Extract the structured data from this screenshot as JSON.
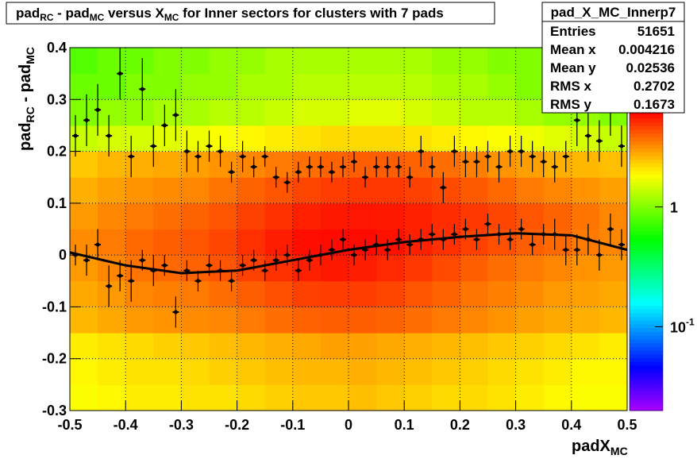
{
  "chart_data": {
    "type": "heatmap",
    "title": [
      "pad",
      "RC",
      " - pad",
      "MC",
      " versus X",
      "MC",
      " for Inner sectors for clusters with 7 pads"
    ],
    "x_label": [
      "padX",
      "MC"
    ],
    "y_label": [
      "pad",
      "RC",
      " - pad",
      "MC"
    ],
    "xlim": [
      -0.5,
      0.5
    ],
    "ylim": [
      -0.3,
      0.4
    ],
    "xticks": [
      -0.5,
      -0.4,
      -0.3,
      -0.2,
      -0.1,
      0,
      0.1,
      0.2,
      0.3,
      0.4,
      0.5
    ],
    "yticks": [
      -0.3,
      -0.2,
      -0.1,
      0,
      0.1,
      0.2,
      0.3,
      0.4
    ],
    "grid": true,
    "zlim": [
      0.02,
      6.3
    ],
    "zlog": true,
    "zticks": [
      1,
      {
        "value": 0.1,
        "label": [
          "10",
          "-1"
        ]
      }
    ],
    "z": [
      [
        1.8,
        1.9,
        2.0,
        2.0,
        2.1,
        2.1,
        2.2,
        2.3,
        2.4,
        2.4,
        2.5,
        2.4,
        2.3,
        2.2,
        2.2,
        2.1,
        2.0,
        1.9,
        1.8,
        1.8
      ],
      [
        1.9,
        2.0,
        2.1,
        2.1,
        2.2,
        2.3,
        2.4,
        2.5,
        2.6,
        2.6,
        2.7,
        2.6,
        2.5,
        2.4,
        2.3,
        2.2,
        2.1,
        2.0,
        1.9,
        1.9
      ],
      [
        2.0,
        2.1,
        2.2,
        2.3,
        2.4,
        2.5,
        2.6,
        2.7,
        2.8,
        2.9,
        2.9,
        2.8,
        2.7,
        2.6,
        2.5,
        2.4,
        2.3,
        2.2,
        2.1,
        2.0
      ],
      [
        2.6,
        2.8,
        3.0,
        3.1,
        3.2,
        3.3,
        3.5,
        3.7,
        3.9,
        4.0,
        4.0,
        3.9,
        3.7,
        3.5,
        3.3,
        3.1,
        2.9,
        2.8,
        2.7,
        2.6
      ],
      [
        2.8,
        3.0,
        3.3,
        3.4,
        3.5,
        3.7,
        4.0,
        4.3,
        4.6,
        4.7,
        4.7,
        4.5,
        4.2,
        3.9,
        3.6,
        3.4,
        3.2,
        3.0,
        2.9,
        2.8
      ],
      [
        3.0,
        3.3,
        3.6,
        3.8,
        3.9,
        4.2,
        4.6,
        5.0,
        5.4,
        5.6,
        5.5,
        5.2,
        4.8,
        4.4,
        4.0,
        3.7,
        3.5,
        3.3,
        3.1,
        3.0
      ],
      [
        3.2,
        3.5,
        3.8,
        4.0,
        4.2,
        4.5,
        5.0,
        5.5,
        5.9,
        6.0,
        6.0,
        5.8,
        5.4,
        5.0,
        4.6,
        4.3,
        4.0,
        3.8,
        3.5,
        3.3
      ],
      [
        3.0,
        3.3,
        3.5,
        3.7,
        3.9,
        4.2,
        4.6,
        5.0,
        5.4,
        5.6,
        5.7,
        5.6,
        5.4,
        5.1,
        4.8,
        4.5,
        4.2,
        3.9,
        3.6,
        3.3
      ],
      [
        2.7,
        2.9,
        3.1,
        3.2,
        3.3,
        3.6,
        3.9,
        4.2,
        4.5,
        4.7,
        4.8,
        4.8,
        4.6,
        4.4,
        4.1,
        3.8,
        3.5,
        3.3,
        3.1,
        2.9
      ],
      [
        2.4,
        2.6,
        2.7,
        2.8,
        2.9,
        3.1,
        3.3,
        3.5,
        3.7,
        3.9,
        4.0,
        4.0,
        3.9,
        3.7,
        3.4,
        3.1,
        2.9,
        2.7,
        2.6,
        2.5
      ],
      [
        1.4,
        1.5,
        1.5,
        1.6,
        1.7,
        1.8,
        1.9,
        2.0,
        2.1,
        2.2,
        2.2,
        2.2,
        2.1,
        2.0,
        1.9,
        1.8,
        1.7,
        1.6,
        1.5,
        1.4
      ],
      [
        1.0,
        1.1,
        1.1,
        1.2,
        1.2,
        1.3,
        1.3,
        1.4,
        1.5,
        1.5,
        1.6,
        1.6,
        1.5,
        1.4,
        1.3,
        1.3,
        1.2,
        1.1,
        1.1,
        1.0
      ],
      [
        0.9,
        0.9,
        1.0,
        1.0,
        1.1,
        1.1,
        1.2,
        1.2,
        1.3,
        1.3,
        1.3,
        1.3,
        1.3,
        1.2,
        1.2,
        1.1,
        1.0,
        1.0,
        0.9,
        0.9
      ],
      [
        0.8,
        0.9,
        0.9,
        1.0,
        1.0,
        1.1,
        1.1,
        1.2,
        1.2,
        1.2,
        1.2,
        1.2,
        1.2,
        1.1,
        1.1,
        1.0,
        1.0,
        0.9,
        0.9,
        0.8
      ]
    ],
    "series": [
      {
        "color": "#000000",
        "x": [
          -0.49,
          -0.47,
          -0.45,
          -0.43,
          -0.41,
          -0.39,
          -0.37,
          -0.35,
          -0.33,
          -0.31,
          -0.29,
          -0.27,
          -0.25,
          -0.23,
          -0.21,
          -0.19,
          -0.17,
          -0.15,
          -0.13,
          -0.11,
          -0.09,
          -0.07,
          -0.05,
          -0.03,
          -0.01,
          0.01,
          0.03,
          0.05,
          0.07,
          0.09,
          0.11,
          0.13,
          0.15,
          0.17,
          0.19,
          0.21,
          0.23,
          0.25,
          0.27,
          0.29,
          0.31,
          0.33,
          0.35,
          0.37,
          0.39,
          0.41,
          0.43,
          0.45,
          0.47,
          0.49
        ],
        "values": [
          0.0,
          -0.01,
          0.02,
          -0.06,
          -0.04,
          -0.05,
          -0.01,
          -0.03,
          -0.02,
          -0.11,
          -0.03,
          -0.05,
          -0.02,
          -0.03,
          -0.05,
          -0.02,
          -0.01,
          -0.03,
          -0.01,
          0.0,
          -0.03,
          -0.01,
          0.0,
          0.01,
          0.03,
          0.0,
          0.01,
          0.02,
          0.01,
          0.03,
          0.02,
          0.03,
          0.04,
          0.03,
          0.04,
          0.05,
          0.03,
          0.06,
          0.04,
          0.03,
          0.05,
          0.02,
          0.04,
          0.04,
          0.01,
          0.01,
          0.03,
          0.0,
          0.05,
          0.02
        ],
        "errors": [
          0.02,
          0.03,
          0.03,
          0.04,
          0.03,
          0.04,
          0.02,
          0.03,
          0.02,
          0.03,
          0.02,
          0.02,
          0.02,
          0.02,
          0.02,
          0.02,
          0.02,
          0.02,
          0.02,
          0.02,
          0.02,
          0.02,
          0.02,
          0.02,
          0.02,
          0.02,
          0.02,
          0.02,
          0.02,
          0.02,
          0.02,
          0.02,
          0.02,
          0.02,
          0.02,
          0.02,
          0.02,
          0.02,
          0.02,
          0.02,
          0.02,
          0.02,
          0.02,
          0.03,
          0.03,
          0.03,
          0.03,
          0.03,
          0.03,
          0.03
        ]
      },
      {
        "color": "#000000",
        "x": [
          -0.49,
          -0.47,
          -0.45,
          -0.43,
          -0.41,
          -0.39,
          -0.37,
          -0.35,
          -0.33,
          -0.31,
          -0.29,
          -0.27,
          -0.25,
          -0.23,
          -0.21,
          -0.19,
          -0.17,
          -0.15,
          -0.13,
          -0.11,
          -0.09,
          -0.07,
          -0.05,
          -0.03,
          -0.01,
          0.01,
          0.03,
          0.05,
          0.07,
          0.09,
          0.11,
          0.13,
          0.15,
          0.17,
          0.19,
          0.21,
          0.23,
          0.25,
          0.27,
          0.29,
          0.31,
          0.33,
          0.35,
          0.37,
          0.39,
          0.41,
          0.43,
          0.45,
          0.47,
          0.49
        ],
        "values": [
          0.23,
          0.26,
          0.28,
          0.23,
          0.35,
          0.19,
          0.32,
          0.21,
          0.25,
          0.27,
          0.2,
          0.19,
          0.21,
          0.2,
          0.16,
          0.19,
          0.17,
          0.19,
          0.15,
          0.14,
          0.16,
          0.17,
          0.17,
          0.16,
          0.17,
          0.18,
          0.15,
          0.17,
          0.17,
          0.17,
          0.15,
          0.2,
          0.17,
          0.13,
          0.2,
          0.18,
          0.18,
          0.19,
          0.17,
          0.2,
          0.2,
          0.19,
          0.18,
          0.17,
          0.19,
          0.26,
          0.23,
          0.22,
          0.28,
          0.21
        ],
        "errors": [
          0.04,
          0.05,
          0.05,
          0.04,
          0.05,
          0.04,
          0.06,
          0.04,
          0.04,
          0.05,
          0.04,
          0.03,
          0.03,
          0.03,
          0.02,
          0.03,
          0.02,
          0.02,
          0.02,
          0.02,
          0.02,
          0.02,
          0.02,
          0.02,
          0.02,
          0.02,
          0.02,
          0.02,
          0.02,
          0.02,
          0.02,
          0.03,
          0.02,
          0.03,
          0.03,
          0.03,
          0.03,
          0.03,
          0.03,
          0.03,
          0.03,
          0.03,
          0.03,
          0.03,
          0.03,
          0.05,
          0.05,
          0.04,
          0.05,
          0.04
        ]
      }
    ],
    "fit": {
      "color": "#000000",
      "x": [
        -0.5,
        -0.4,
        -0.3,
        -0.2,
        -0.1,
        0,
        0.1,
        0.2,
        0.3,
        0.4,
        0.5
      ],
      "values": [
        0.005,
        -0.02,
        -0.035,
        -0.03,
        -0.01,
        0.01,
        0.025,
        0.035,
        0.042,
        0.038,
        0.01
      ]
    },
    "stats": {
      "name": "pad_X_MC_Innerp7",
      "rows": [
        [
          "Entries",
          "51651"
        ],
        [
          "Mean x",
          "0.004216"
        ],
        [
          "Mean y",
          "0.02536"
        ],
        [
          "RMS x",
          "0.2702"
        ],
        [
          "RMS y",
          "0.1673"
        ]
      ]
    }
  }
}
